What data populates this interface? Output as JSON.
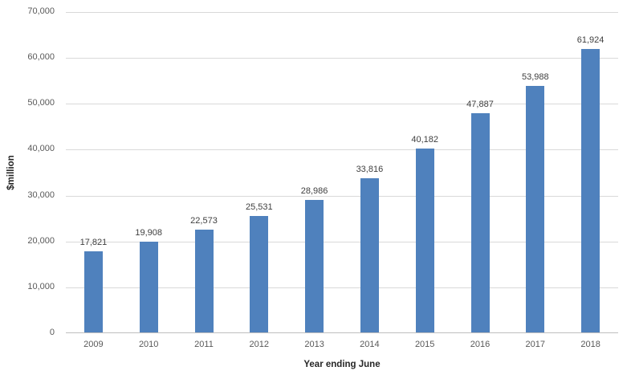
{
  "chart_data": {
    "type": "bar",
    "title": "",
    "xlabel": "Year ending June",
    "ylabel": "$million",
    "categories": [
      "2009",
      "2010",
      "2011",
      "2012",
      "2013",
      "2014",
      "2015",
      "2016",
      "2017",
      "2018"
    ],
    "values": [
      17821,
      19908,
      22573,
      25531,
      28986,
      33816,
      40182,
      47887,
      53988,
      61924
    ],
    "value_labels": [
      "17,821",
      "19,908",
      "22,573",
      "25,531",
      "28,986",
      "33,816",
      "40,182",
      "47,887",
      "53,988",
      "61,924"
    ],
    "ylim": [
      0,
      70000
    ],
    "ytick_step": 10000,
    "ytick_labels": [
      "0",
      "10,000",
      "20,000",
      "30,000",
      "40,000",
      "50,000",
      "60,000",
      "70,000"
    ],
    "grid": true,
    "legend": "none",
    "colors": {
      "bar": "#4F81BD",
      "gridline": "#D9D9D9",
      "axis_line": "#BFBFBF",
      "tick_label": "#595959",
      "data_label": "#404040",
      "axis_title": "#262626"
    }
  }
}
